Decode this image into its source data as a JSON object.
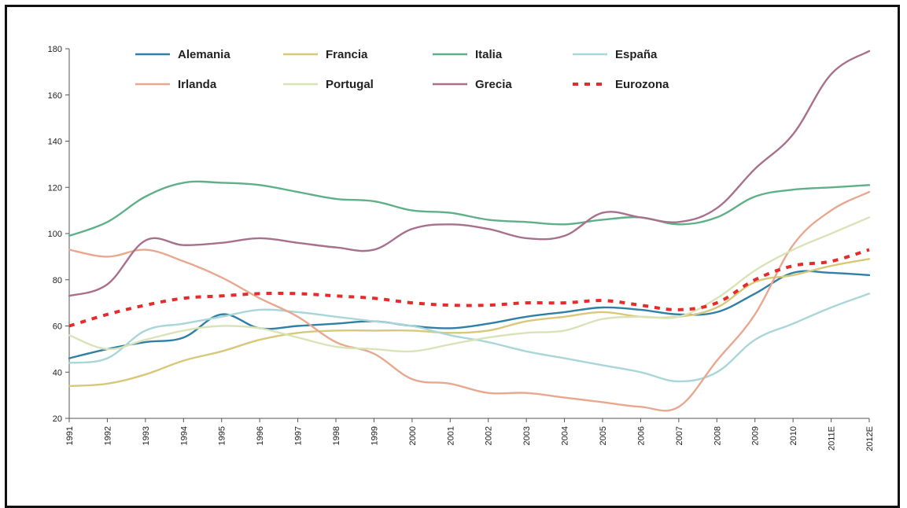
{
  "chart_data": {
    "type": "line",
    "title": "",
    "xlabel": "",
    "ylabel": "",
    "ylim": [
      20,
      180
    ],
    "yticks": [
      20,
      40,
      60,
      80,
      100,
      120,
      140,
      160,
      180
    ],
    "grid": false,
    "legend_placement": "top",
    "categories": [
      "1991",
      "1992",
      "1993",
      "1994",
      "1995",
      "1996",
      "1997",
      "1998",
      "1999",
      "2000",
      "2001",
      "2002",
      "2003",
      "2004",
      "2005",
      "2006",
      "2007",
      "2008",
      "2009",
      "2010",
      "2011E",
      "2012E"
    ],
    "series": [
      {
        "name": "Alemania",
        "color": "#2f7fa6",
        "dash": false,
        "values": [
          46,
          50,
          53,
          55,
          65,
          59,
          60,
          61,
          62,
          60,
          59,
          61,
          64,
          66,
          68,
          67,
          65,
          66,
          74,
          83,
          83,
          82
        ]
      },
      {
        "name": "Francia",
        "color": "#d8c87a",
        "dash": false,
        "values": [
          34,
          35,
          39,
          45,
          49,
          54,
          57,
          58,
          58,
          58,
          57,
          58,
          62,
          64,
          66,
          64,
          64,
          68,
          79,
          82,
          86,
          89
        ]
      },
      {
        "name": "Italia",
        "color": "#5fb088",
        "dash": false,
        "values": [
          99,
          105,
          116,
          122,
          122,
          121,
          118,
          115,
          114,
          110,
          109,
          106,
          105,
          104,
          106,
          107,
          104,
          107,
          116,
          119,
          120,
          121
        ]
      },
      {
        "name": "España",
        "color": "#a9d6d8",
        "dash": false,
        "values": [
          44,
          46,
          58,
          61,
          64,
          67,
          66,
          64,
          62,
          60,
          56,
          53,
          49,
          46,
          43,
          40,
          36,
          40,
          54,
          61,
          68,
          74
        ]
      },
      {
        "name": "Irlanda",
        "color": "#e8a890",
        "dash": false,
        "values": [
          93,
          90,
          93,
          88,
          81,
          72,
          64,
          53,
          48,
          37,
          35,
          31,
          31,
          29,
          27,
          25,
          25,
          45,
          65,
          95,
          110,
          118
        ]
      },
      {
        "name": "Portugal",
        "color": "#d9e3b8",
        "dash": false,
        "values": [
          56,
          50,
          54,
          58,
          60,
          59,
          55,
          51,
          50,
          49,
          52,
          55,
          57,
          58,
          63,
          64,
          64,
          72,
          84,
          93,
          100,
          107
        ]
      },
      {
        "name": "Grecia",
        "color": "#a8708c",
        "dash": false,
        "values": [
          73,
          78,
          97,
          95,
          96,
          98,
          96,
          94,
          93,
          102,
          104,
          102,
          98,
          99,
          109,
          107,
          105,
          111,
          128,
          143,
          169,
          179
        ]
      },
      {
        "name": "Eurozona",
        "color": "#e52b2b",
        "dash": true,
        "values": [
          60,
          65,
          69,
          72,
          73,
          74,
          74,
          73,
          72,
          70,
          69,
          69,
          70,
          70,
          71,
          69,
          67,
          70,
          80,
          86,
          88,
          93
        ]
      }
    ]
  }
}
